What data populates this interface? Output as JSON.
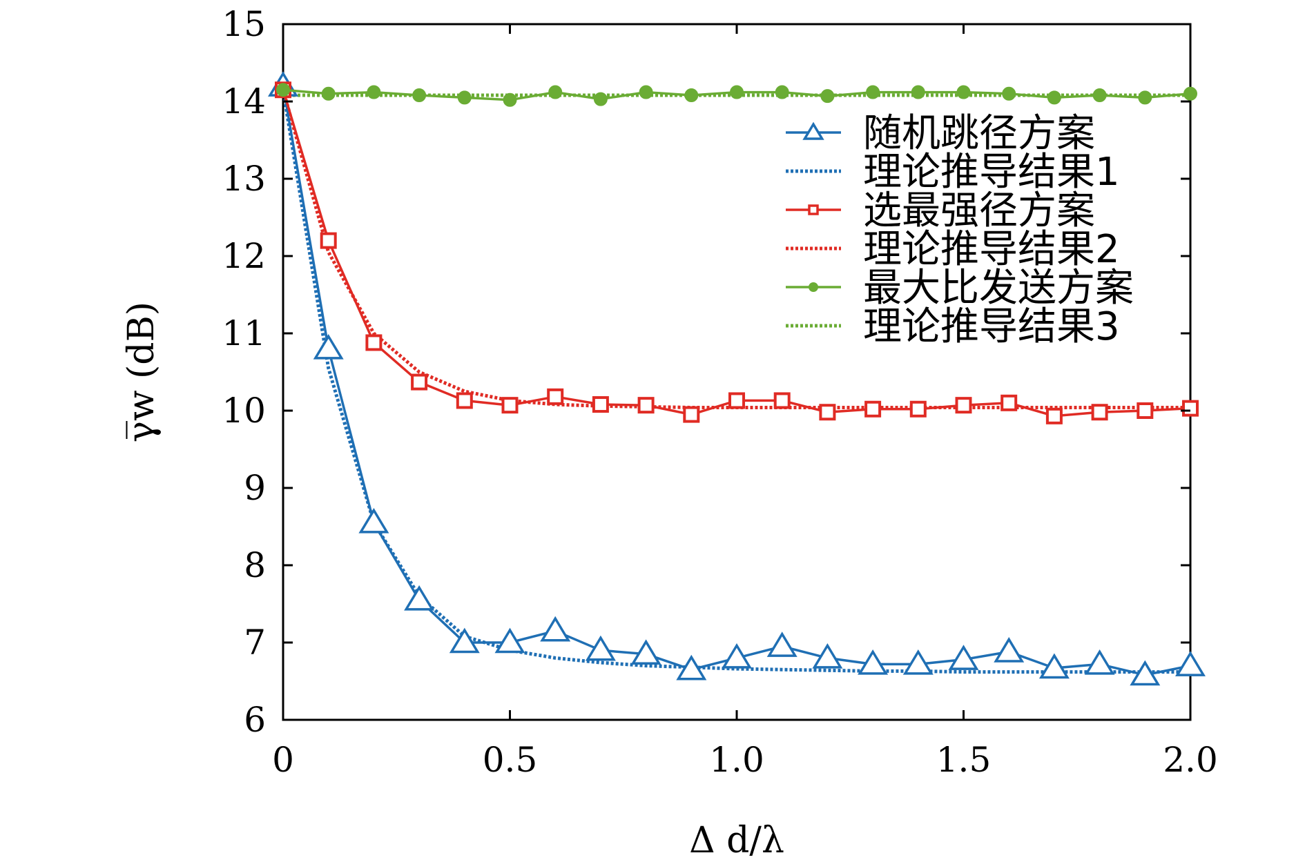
{
  "chart_data": {
    "type": "line",
    "xlabel": "Δ d/λ",
    "ylabel": "γ̅w (dB)",
    "xlim": [
      0,
      2.0
    ],
    "ylim": [
      6,
      15
    ],
    "x_ticks": [
      0,
      0.5,
      1.0,
      1.5,
      2.0
    ],
    "x_tick_labels": [
      "0",
      "0.5",
      "1.0",
      "1.5",
      "2.0"
    ],
    "y_ticks": [
      6,
      7,
      8,
      9,
      10,
      11,
      12,
      13,
      14,
      15
    ],
    "y_tick_labels": [
      "6",
      "7",
      "8",
      "9",
      "10",
      "11",
      "12",
      "13",
      "14",
      "15"
    ],
    "grid": false,
    "legend_position": "top-right",
    "x": [
      0,
      0.1,
      0.2,
      0.3,
      0.4,
      0.5,
      0.6,
      0.7,
      0.8,
      0.9,
      1.0,
      1.1,
      1.2,
      1.3,
      1.4,
      1.5,
      1.6,
      1.7,
      1.8,
      1.9,
      2.0
    ],
    "series": [
      {
        "name": "随机跳径方案",
        "color": "#1f6fb4",
        "style": "solid",
        "marker": "triangle",
        "values": [
          14.2,
          10.8,
          8.55,
          7.55,
          7.0,
          7.0,
          7.15,
          6.9,
          6.85,
          6.65,
          6.8,
          6.95,
          6.8,
          6.72,
          6.72,
          6.78,
          6.88,
          6.67,
          6.72,
          6.58,
          6.7
        ]
      },
      {
        "name": "理论推导结果1",
        "color": "#1f6fb4",
        "style": "dotted",
        "marker": "none",
        "values": [
          14.15,
          10.55,
          8.55,
          7.6,
          7.08,
          6.9,
          6.8,
          6.74,
          6.7,
          6.68,
          6.66,
          6.65,
          6.64,
          6.63,
          6.63,
          6.62,
          6.62,
          6.62,
          6.62,
          6.62,
          6.62
        ]
      },
      {
        "name": "选最强径方案",
        "color": "#e02b24",
        "style": "solid",
        "marker": "square",
        "values": [
          14.15,
          12.2,
          10.88,
          10.37,
          10.13,
          10.07,
          10.18,
          10.08,
          10.07,
          9.95,
          10.13,
          10.13,
          9.98,
          10.02,
          10.02,
          10.07,
          10.1,
          9.93,
          9.98,
          10.0,
          10.03
        ]
      },
      {
        "name": "理论推导结果2",
        "color": "#e02b24",
        "style": "dotted",
        "marker": "none",
        "values": [
          14.15,
          12.05,
          11.0,
          10.5,
          10.25,
          10.13,
          10.08,
          10.06,
          10.05,
          10.04,
          10.04,
          10.04,
          10.04,
          10.04,
          10.04,
          10.04,
          10.04,
          10.04,
          10.04,
          10.04,
          10.04
        ]
      },
      {
        "name": "最大比发送方案",
        "color": "#6aac34",
        "style": "solid",
        "marker": "circle",
        "values": [
          14.15,
          14.1,
          14.12,
          14.08,
          14.05,
          14.02,
          14.12,
          14.03,
          14.12,
          14.08,
          14.12,
          14.12,
          14.07,
          14.12,
          14.12,
          14.12,
          14.1,
          14.05,
          14.08,
          14.05,
          14.1
        ]
      },
      {
        "name": "理论推导结果3",
        "color": "#6aac34",
        "style": "dotted",
        "marker": "none",
        "values": [
          14.08,
          14.08,
          14.08,
          14.08,
          14.08,
          14.08,
          14.08,
          14.08,
          14.08,
          14.08,
          14.08,
          14.08,
          14.08,
          14.08,
          14.08,
          14.08,
          14.08,
          14.08,
          14.08,
          14.08,
          14.08
        ]
      }
    ]
  }
}
